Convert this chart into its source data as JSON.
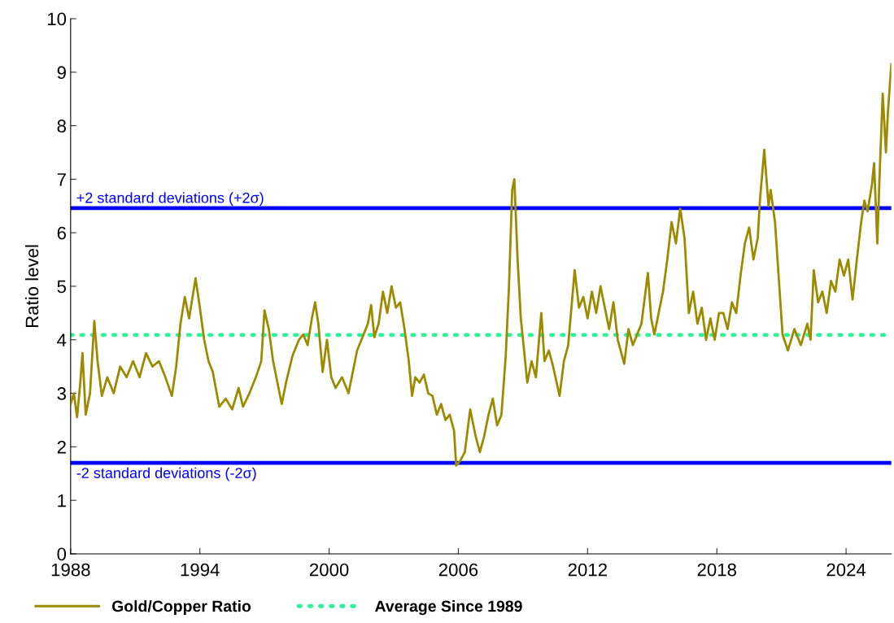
{
  "chart_data": {
    "type": "line",
    "ylabel": "Ratio level",
    "xlim": [
      1988,
      2026.1
    ],
    "xticks": [
      1988,
      1994,
      2000,
      2006,
      2012,
      2018,
      2024
    ],
    "ylim": [
      0,
      10
    ],
    "yticks": [
      0,
      1,
      2,
      3,
      4,
      5,
      6,
      7,
      8,
      9,
      10
    ],
    "grid": false,
    "legend": "bottom",
    "marker": "none",
    "line_style": "solid",
    "ref_lines": [
      {
        "axis": "y",
        "value": 6.46,
        "label": "+2 standard deviations (+2σ)",
        "color": "#0000ff",
        "line_style": "solid"
      },
      {
        "axis": "y",
        "value": 1.7,
        "label": "-2 standard deviations (-2σ)",
        "color": "#0000ff",
        "line_style": "solid"
      },
      {
        "axis": "y",
        "value": 4.09,
        "label": "Average Since 1989",
        "color": "#2ef29a",
        "line_style": "dotted"
      }
    ],
    "series": [
      {
        "name": "Gold/Copper Ratio",
        "color": "#9c8a00",
        "x": [
          1988.0,
          1988.15,
          1988.3,
          1988.45,
          1988.55,
          1988.7,
          1988.9,
          1989.1,
          1989.25,
          1989.45,
          1989.7,
          1990.0,
          1990.3,
          1990.6,
          1990.9,
          1991.2,
          1991.5,
          1991.8,
          1992.1,
          1992.4,
          1992.7,
          1992.9,
          1993.1,
          1993.3,
          1993.5,
          1993.8,
          1994.0,
          1994.2,
          1994.4,
          1994.6,
          1994.9,
          1995.2,
          1995.5,
          1995.8,
          1996.0,
          1996.3,
          1996.6,
          1996.85,
          1997.0,
          1997.2,
          1997.4,
          1997.6,
          1997.8,
          1998.0,
          1998.3,
          1998.6,
          1998.8,
          1999.0,
          1999.2,
          1999.35,
          1999.5,
          1999.7,
          1999.9,
          2000.1,
          2000.3,
          2000.6,
          2000.9,
          2001.1,
          2001.3,
          2001.6,
          2001.8,
          2001.95,
          2002.1,
          2002.3,
          2002.5,
          2002.7,
          2002.9,
          2003.1,
          2003.3,
          2003.5,
          2003.7,
          2003.85,
          2004.0,
          2004.2,
          2004.4,
          2004.6,
          2004.8,
          2005.0,
          2005.2,
          2005.4,
          2005.6,
          2005.8,
          2005.9,
          2006.1,
          2006.3,
          2006.55,
          2006.8,
          2007.0,
          2007.2,
          2007.4,
          2007.6,
          2007.8,
          2008.0,
          2008.2,
          2008.35,
          2008.5,
          2008.6,
          2008.75,
          2008.9,
          2009.05,
          2009.2,
          2009.4,
          2009.6,
          2009.85,
          2010.0,
          2010.2,
          2010.4,
          2010.7,
          2010.9,
          2011.1,
          2011.4,
          2011.6,
          2011.8,
          2012.0,
          2012.2,
          2012.4,
          2012.6,
          2012.8,
          2013.0,
          2013.2,
          2013.4,
          2013.7,
          2013.9,
          2014.1,
          2014.3,
          2014.5,
          2014.8,
          2014.95,
          2015.1,
          2015.3,
          2015.5,
          2015.7,
          2015.9,
          2016.1,
          2016.3,
          2016.5,
          2016.7,
          2016.9,
          2017.1,
          2017.3,
          2017.5,
          2017.7,
          2017.9,
          2018.1,
          2018.3,
          2018.5,
          2018.7,
          2018.9,
          2019.1,
          2019.3,
          2019.5,
          2019.7,
          2019.9,
          2020.0,
          2020.2,
          2020.4,
          2020.5,
          2020.7,
          2020.9,
          2021.05,
          2021.3,
          2021.6,
          2021.9,
          2022.2,
          2022.35,
          2022.5,
          2022.7,
          2022.9,
          2023.1,
          2023.3,
          2023.5,
          2023.7,
          2023.9,
          2024.1,
          2024.3,
          2024.5,
          2024.7,
          2024.85,
          2025.0,
          2025.2,
          2025.3,
          2025.45,
          2025.55,
          2025.7,
          2025.85,
          2025.95,
          2026.1
        ],
        "values": [
          2.8,
          3.0,
          2.55,
          3.2,
          3.75,
          2.6,
          3.0,
          4.35,
          3.6,
          2.95,
          3.3,
          3.0,
          3.5,
          3.3,
          3.6,
          3.3,
          3.75,
          3.5,
          3.6,
          3.3,
          2.95,
          3.5,
          4.3,
          4.8,
          4.4,
          5.15,
          4.6,
          4.0,
          3.6,
          3.4,
          2.75,
          2.9,
          2.7,
          3.1,
          2.75,
          3.0,
          3.3,
          3.6,
          4.55,
          4.2,
          3.6,
          3.2,
          2.8,
          3.2,
          3.7,
          4.0,
          4.1,
          3.9,
          4.4,
          4.7,
          4.3,
          3.4,
          4.0,
          3.3,
          3.1,
          3.3,
          3.0,
          3.4,
          3.8,
          4.1,
          4.3,
          4.65,
          4.05,
          4.3,
          4.9,
          4.5,
          5.0,
          4.6,
          4.7,
          4.2,
          3.6,
          2.95,
          3.3,
          3.2,
          3.35,
          3.0,
          2.95,
          2.6,
          2.8,
          2.5,
          2.6,
          2.3,
          1.65,
          1.75,
          1.9,
          2.7,
          2.2,
          1.9,
          2.2,
          2.6,
          2.9,
          2.4,
          2.6,
          3.7,
          5.0,
          6.8,
          7.0,
          5.5,
          4.4,
          3.8,
          3.2,
          3.6,
          3.3,
          4.5,
          3.6,
          3.8,
          3.5,
          2.95,
          3.6,
          3.9,
          5.3,
          4.6,
          4.8,
          4.4,
          4.9,
          4.5,
          5.0,
          4.6,
          4.2,
          4.7,
          4.0,
          3.55,
          4.2,
          3.9,
          4.1,
          4.3,
          5.25,
          4.4,
          4.1,
          4.5,
          4.9,
          5.5,
          6.2,
          5.8,
          6.45,
          5.9,
          4.5,
          4.9,
          4.3,
          4.6,
          4.0,
          4.4,
          4.0,
          4.5,
          4.5,
          4.2,
          4.7,
          4.5,
          5.2,
          5.8,
          6.1,
          5.5,
          5.9,
          6.6,
          7.55,
          6.5,
          6.8,
          6.2,
          5.0,
          4.1,
          3.8,
          4.2,
          3.9,
          4.3,
          4.0,
          5.3,
          4.7,
          4.9,
          4.5,
          5.1,
          4.9,
          5.5,
          5.2,
          5.5,
          4.75,
          5.5,
          6.2,
          6.6,
          6.4,
          6.9,
          7.3,
          5.8,
          7.0,
          8.6,
          7.5,
          8.3,
          9.15
        ]
      }
    ]
  }
}
